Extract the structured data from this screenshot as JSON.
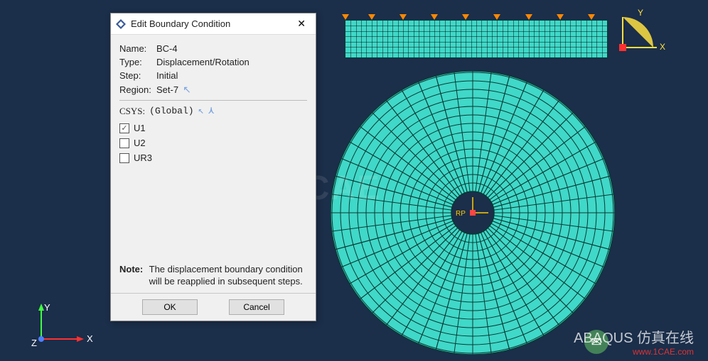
{
  "dialog": {
    "title": "Edit Boundary Condition",
    "fields": {
      "name_label": "Name:",
      "name_value": "BC-4",
      "type_label": "Type:",
      "type_value": "Displacement/Rotation",
      "step_label": "Step:",
      "step_value": "Initial",
      "region_label": "Region:",
      "region_value": "Set-7"
    },
    "csys_label": "CSYS:",
    "csys_value": "(Global)",
    "dofs": [
      {
        "label": "U1",
        "checked": true
      },
      {
        "label": "U2",
        "checked": false
      },
      {
        "label": "UR3",
        "checked": false
      }
    ],
    "note_label": "Note:",
    "note_text": "The displacement boundary condition will be reapplied in subsequent steps.",
    "ok": "OK",
    "cancel": "Cancel"
  },
  "axes": {
    "x": "X",
    "y": "Y",
    "z": "Z"
  },
  "colors": {
    "mesh_fill": "#40d8c8",
    "mesh_line": "#0a3a35",
    "bg": "#1b2e4a",
    "x_axis": "#ff3030",
    "y_axis": "#40ff40",
    "z_axis": "#5080ff",
    "bc_arrow": "#ff8800"
  },
  "watermarks": {
    "center": "1CAE",
    "brand": "ABAQUS 仿真在线",
    "url": "www.1CAE.com"
  }
}
